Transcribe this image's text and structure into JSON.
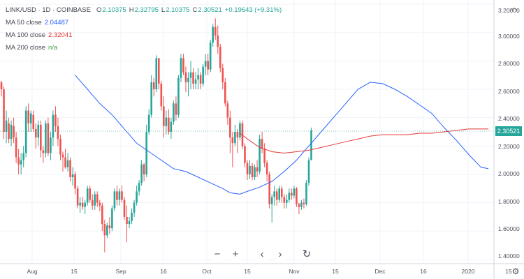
{
  "header": {
    "symbol": "LINK/USD · 1D · COINBASE",
    "o_label": "O",
    "o_value": "2.10375",
    "h_label": "H",
    "h_value": "2.32795",
    "l_label": "L",
    "l_value": "2.10375",
    "c_label": "C",
    "c_value": "2.30521",
    "change": "+0.19643 (+9.31%)"
  },
  "indicators": [
    {
      "label": "MA 50 close",
      "value": "2.04487",
      "color": "#2962ff"
    },
    {
      "label": "MA 100 close",
      "value": "2.32041",
      "color": "#e53935"
    },
    {
      "label": "MA 200 close",
      "value": "n/a",
      "color": "#43a047"
    }
  ],
  "price_axis": {
    "labels": [
      "3.20000",
      "3.00000",
      "2.80000",
      "2.60000",
      "2.40000",
      "2.20000",
      "2.00000",
      "1.80000",
      "1.60000",
      "1.40000"
    ],
    "last_price": "2.30521",
    "last_price_color": "#26a69a"
  },
  "time_axis": {
    "labels": [
      "Aug",
      "15",
      "Sep",
      "16",
      "Oct",
      "15",
      "Nov",
      "15",
      "Dec",
      "16",
      "2020",
      "15"
    ]
  },
  "nav": {
    "zoom_out": "−",
    "zoom_in": "+",
    "scroll_left": "‹",
    "scroll_right": "›",
    "reset": "↻"
  },
  "colors": {
    "up": "#26a69a",
    "down": "#ef5350",
    "ma50": "#2962ff",
    "ma100": "#e53935"
  },
  "chart_data": {
    "type": "candlestick",
    "title": "LINK/USD · 1D · COINBASE",
    "ylim": [
      1.37,
      3.23
    ],
    "x_start": "2019-07-17",
    "y_ticks": [
      3.2,
      3.0,
      2.8,
      2.6,
      2.4,
      2.2,
      2.0,
      1.8,
      1.6,
      1.4
    ],
    "candles": [
      [
        2.65,
        2.66,
        2.55,
        2.6
      ],
      [
        2.6,
        2.62,
        2.25,
        2.3
      ],
      [
        2.3,
        2.45,
        2.22,
        2.38
      ],
      [
        2.36,
        2.4,
        2.22,
        2.25
      ],
      [
        2.25,
        2.38,
        2.2,
        2.35
      ],
      [
        2.34,
        2.4,
        2.22,
        2.26
      ],
      [
        2.26,
        2.3,
        2.08,
        2.12
      ],
      [
        2.12,
        2.18,
        2.0,
        2.07
      ],
      [
        2.07,
        2.15,
        2.0,
        2.1
      ],
      [
        2.1,
        2.2,
        2.05,
        2.15
      ],
      [
        2.15,
        2.48,
        2.12,
        2.45
      ],
      [
        2.45,
        2.5,
        2.3,
        2.36
      ],
      [
        2.36,
        2.45,
        2.3,
        2.43
      ],
      [
        2.42,
        2.45,
        2.3,
        2.32
      ],
      [
        2.32,
        2.36,
        2.18,
        2.26
      ],
      [
        2.26,
        2.38,
        2.2,
        2.35
      ],
      [
        2.35,
        2.38,
        2.12,
        2.17
      ],
      [
        2.17,
        2.2,
        2.08,
        2.15
      ],
      [
        2.15,
        2.38,
        2.12,
        2.36
      ],
      [
        2.36,
        2.4,
        2.13,
        2.15
      ],
      [
        2.15,
        2.3,
        2.1,
        2.26
      ],
      [
        2.26,
        2.45,
        2.2,
        2.42
      ],
      [
        2.42,
        2.48,
        2.3,
        2.34
      ],
      [
        2.34,
        2.4,
        2.2,
        2.25
      ],
      [
        2.25,
        2.28,
        2.1,
        2.14
      ],
      [
        2.14,
        2.16,
        2.02,
        2.12
      ],
      [
        2.12,
        2.18,
        2.04,
        2.05
      ],
      [
        2.05,
        2.15,
        2.02,
        2.1
      ],
      [
        2.1,
        2.12,
        1.95,
        1.98
      ],
      [
        1.98,
        2.05,
        1.92,
        2.0
      ],
      [
        2.0,
        2.02,
        1.86,
        1.9
      ],
      [
        1.9,
        1.92,
        1.76,
        1.78
      ],
      [
        1.78,
        1.84,
        1.73,
        1.8
      ],
      [
        1.8,
        1.84,
        1.75,
        1.77
      ],
      [
        1.77,
        1.82,
        1.72,
        1.8
      ],
      [
        1.8,
        1.92,
        1.78,
        1.9
      ],
      [
        1.9,
        1.92,
        1.8,
        1.82
      ],
      [
        1.82,
        1.86,
        1.75,
        1.78
      ],
      [
        1.78,
        1.88,
        1.75,
        1.86
      ],
      [
        1.86,
        1.88,
        1.77,
        1.8
      ],
      [
        1.8,
        1.82,
        1.74,
        1.78
      ],
      [
        1.78,
        1.8,
        1.6,
        1.65
      ],
      [
        1.65,
        1.68,
        1.45,
        1.57
      ],
      [
        1.57,
        1.66,
        1.55,
        1.64
      ],
      [
        1.64,
        1.7,
        1.58,
        1.62
      ],
      [
        1.62,
        1.78,
        1.6,
        1.76
      ],
      [
        1.76,
        1.9,
        1.74,
        1.88
      ],
      [
        1.88,
        1.92,
        1.78,
        1.82
      ],
      [
        1.82,
        1.9,
        1.78,
        1.88
      ],
      [
        1.88,
        1.92,
        1.8,
        1.82
      ],
      [
        1.82,
        1.84,
        1.68,
        1.7
      ],
      [
        1.7,
        1.78,
        1.52,
        1.65
      ],
      [
        1.65,
        1.7,
        1.62,
        1.67
      ],
      [
        1.67,
        1.76,
        1.65,
        1.73
      ],
      [
        1.73,
        1.82,
        1.7,
        1.8
      ],
      [
        1.8,
        1.92,
        1.78,
        1.88
      ],
      [
        1.88,
        1.96,
        1.85,
        1.94
      ],
      [
        1.94,
        2.1,
        1.92,
        2.07
      ],
      [
        2.07,
        2.08,
        1.95,
        2.0
      ],
      [
        2.0,
        2.35,
        1.98,
        2.3
      ],
      [
        2.3,
        2.46,
        2.28,
        2.42
      ],
      [
        2.42,
        2.7,
        2.4,
        2.65
      ],
      [
        2.65,
        2.68,
        2.55,
        2.6
      ],
      [
        2.6,
        2.84,
        2.58,
        2.82
      ],
      [
        2.82,
        2.82,
        2.6,
        2.64
      ],
      [
        2.64,
        2.66,
        2.45,
        2.48
      ],
      [
        2.48,
        2.55,
        2.26,
        2.34
      ],
      [
        2.34,
        2.45,
        2.28,
        2.4
      ],
      [
        2.4,
        2.46,
        2.28,
        2.3
      ],
      [
        2.3,
        2.4,
        2.25,
        2.37
      ],
      [
        2.37,
        2.52,
        2.35,
        2.5
      ],
      [
        2.5,
        2.55,
        2.38,
        2.42
      ],
      [
        2.42,
        2.7,
        2.4,
        2.68
      ],
      [
        2.68,
        2.85,
        2.65,
        2.82
      ],
      [
        2.82,
        2.85,
        2.7,
        2.72
      ],
      [
        2.72,
        2.76,
        2.58,
        2.65
      ],
      [
        2.65,
        2.72,
        2.55,
        2.68
      ],
      [
        2.68,
        2.8,
        2.6,
        2.72
      ],
      [
        2.72,
        2.75,
        2.6,
        2.64
      ],
      [
        2.64,
        2.72,
        2.6,
        2.67
      ],
      [
        2.67,
        2.75,
        2.6,
        2.7
      ],
      [
        2.7,
        2.72,
        2.6,
        2.64
      ],
      [
        2.64,
        2.78,
        2.62,
        2.76
      ],
      [
        2.76,
        2.85,
        2.7,
        2.8
      ],
      [
        2.8,
        2.85,
        2.7,
        2.74
      ],
      [
        2.74,
        2.95,
        2.72,
        2.93
      ],
      [
        2.93,
        3.06,
        2.9,
        3.04
      ],
      [
        3.04,
        3.1,
        2.95,
        2.98
      ],
      [
        2.98,
        3.05,
        2.85,
        2.9
      ],
      [
        2.9,
        2.92,
        2.72,
        2.75
      ],
      [
        2.75,
        2.78,
        2.6,
        2.65
      ],
      [
        2.65,
        2.68,
        2.48,
        2.5
      ],
      [
        2.5,
        2.52,
        2.35,
        2.4
      ],
      [
        2.4,
        2.45,
        2.15,
        2.26
      ],
      [
        2.26,
        2.3,
        2.05,
        2.22
      ],
      [
        2.22,
        2.35,
        2.2,
        2.3
      ],
      [
        2.3,
        2.32,
        2.15,
        2.26
      ],
      [
        2.26,
        2.38,
        2.24,
        2.36
      ],
      [
        2.36,
        2.38,
        2.18,
        2.2
      ],
      [
        2.2,
        2.22,
        2.05,
        2.08
      ],
      [
        2.08,
        2.1,
        1.96,
        2.0
      ],
      [
        2.0,
        2.1,
        1.97,
        2.06
      ],
      [
        2.06,
        2.08,
        1.96,
        1.98
      ],
      [
        1.98,
        2.07,
        1.96,
        2.05
      ],
      [
        2.05,
        2.1,
        1.98,
        2.02
      ],
      [
        2.02,
        2.28,
        2.0,
        2.25
      ],
      [
        2.25,
        2.3,
        2.15,
        2.18
      ],
      [
        2.18,
        2.22,
        2.05,
        2.08
      ],
      [
        2.08,
        2.1,
        1.95,
        2.0
      ],
      [
        2.0,
        2.02,
        1.76,
        1.79
      ],
      [
        1.79,
        1.86,
        1.66,
        1.84
      ],
      [
        1.84,
        1.92,
        1.78,
        1.88
      ],
      [
        1.88,
        1.9,
        1.78,
        1.82
      ],
      [
        1.82,
        1.92,
        1.8,
        1.9
      ],
      [
        1.9,
        1.92,
        1.8,
        1.84
      ],
      [
        1.84,
        1.86,
        1.76,
        1.8
      ],
      [
        1.8,
        1.86,
        1.76,
        1.82
      ],
      [
        1.82,
        1.9,
        1.8,
        1.87
      ],
      [
        1.87,
        1.9,
        1.82,
        1.85
      ],
      [
        1.85,
        1.92,
        1.83,
        1.9
      ],
      [
        1.9,
        1.91,
        1.77,
        1.79
      ],
      [
        1.79,
        1.8,
        1.72,
        1.77
      ],
      [
        1.77,
        1.82,
        1.75,
        1.8
      ],
      [
        1.8,
        1.83,
        1.76,
        1.79
      ],
      [
        1.79,
        1.96,
        1.78,
        1.94
      ],
      [
        1.94,
        2.12,
        1.92,
        2.1
      ],
      [
        2.1,
        2.33,
        2.1,
        2.31
      ]
    ],
    "ma50": [
      [
        30,
        2.7
      ],
      [
        35,
        2.6
      ],
      [
        40,
        2.5
      ],
      [
        45,
        2.42
      ],
      [
        50,
        2.32
      ],
      [
        55,
        2.22
      ],
      [
        60,
        2.16
      ],
      [
        65,
        2.1
      ],
      [
        70,
        2.04
      ],
      [
        75,
        2.02
      ],
      [
        80,
        1.98
      ],
      [
        85,
        1.94
      ],
      [
        90,
        1.9
      ],
      [
        93,
        1.87
      ],
      [
        97,
        1.86
      ],
      [
        100,
        1.88
      ],
      [
        105,
        1.91
      ],
      [
        110,
        1.95
      ],
      [
        115,
        2.02
      ],
      [
        120,
        2.1
      ],
      [
        125,
        2.2
      ],
      [
        130,
        2.3
      ],
      [
        135,
        2.4
      ],
      [
        140,
        2.5
      ],
      [
        145,
        2.6
      ],
      [
        150,
        2.65
      ],
      [
        155,
        2.64
      ],
      [
        160,
        2.6
      ],
      [
        165,
        2.55
      ],
      [
        170,
        2.49
      ],
      [
        175,
        2.43
      ],
      [
        180,
        2.33
      ],
      [
        185,
        2.24
      ],
      [
        190,
        2.14
      ],
      [
        195,
        2.05
      ],
      [
        198,
        2.04
      ]
    ],
    "ma100": [
      [
        97,
        2.29
      ],
      [
        100,
        2.25
      ],
      [
        105,
        2.19
      ],
      [
        110,
        2.16
      ],
      [
        115,
        2.15
      ],
      [
        120,
        2.16
      ],
      [
        125,
        2.17
      ],
      [
        130,
        2.19
      ],
      [
        135,
        2.21
      ],
      [
        140,
        2.23
      ],
      [
        145,
        2.25
      ],
      [
        150,
        2.27
      ],
      [
        155,
        2.28
      ],
      [
        160,
        2.28
      ],
      [
        165,
        2.28
      ],
      [
        170,
        2.29
      ],
      [
        175,
        2.29
      ],
      [
        180,
        2.3
      ],
      [
        185,
        2.31
      ],
      [
        190,
        2.32
      ],
      [
        195,
        2.32
      ],
      [
        198,
        2.32
      ]
    ]
  }
}
